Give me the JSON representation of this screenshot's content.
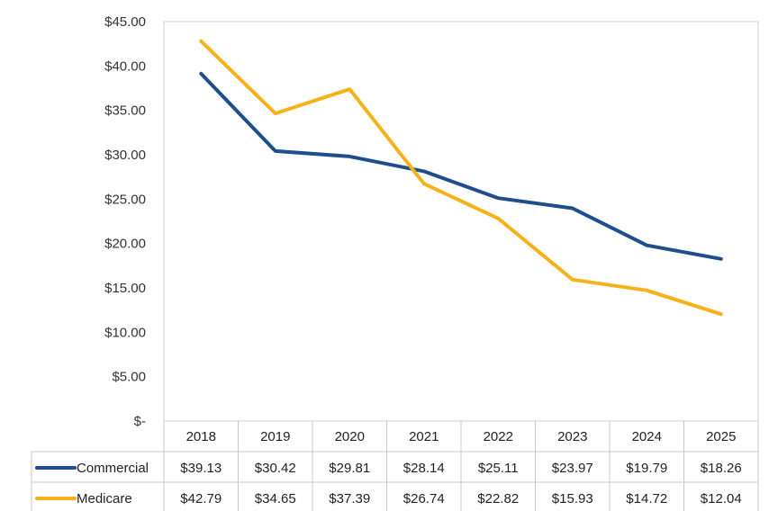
{
  "chart_data": {
    "type": "line",
    "title": "",
    "xlabel": "",
    "ylabel": "",
    "categories": [
      "2018",
      "2019",
      "2020",
      "2021",
      "2022",
      "2023",
      "2024",
      "2025"
    ],
    "ylim": [
      0,
      45
    ],
    "yticks": [
      0,
      5,
      10,
      15,
      20,
      25,
      30,
      35,
      40,
      45
    ],
    "ytick_labels": [
      "$-",
      "$5.00",
      "$10.00",
      "$15.00",
      "$20.00",
      "$25.00",
      "$30.00",
      "$35.00",
      "$40.00",
      "$45.00"
    ],
    "grid": false,
    "legend": "data-table",
    "series": [
      {
        "name": "Commercial",
        "color": "#1f4e8c",
        "values": [
          39.13,
          30.42,
          29.81,
          28.14,
          25.11,
          23.97,
          19.79,
          18.26
        ],
        "labels": [
          "$39.13",
          "$30.42",
          "$29.81",
          "$28.14",
          "$25.11",
          "$23.97",
          "$19.79",
          "$18.26"
        ]
      },
      {
        "name": "Medicare",
        "color": "#f5b21b",
        "values": [
          42.79,
          34.65,
          37.39,
          26.74,
          22.82,
          15.93,
          14.72,
          12.04
        ],
        "labels": [
          "$42.79",
          "$34.65",
          "$37.39",
          "$26.74",
          "$22.82",
          "$15.93",
          "$14.72",
          "$12.04"
        ]
      }
    ]
  }
}
